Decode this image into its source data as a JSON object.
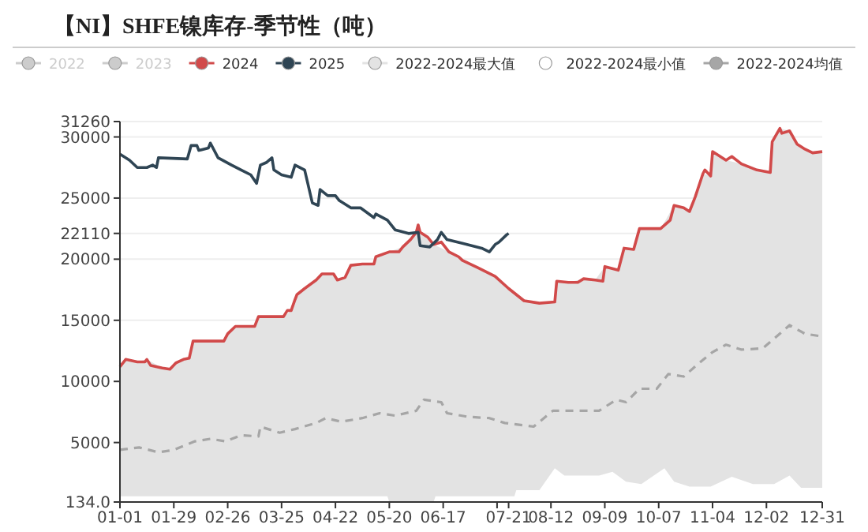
{
  "chart_data": {
    "type": "line",
    "title": "【NI】SHFE镍库存-季节性（吨）",
    "legend": "top",
    "grid": "y",
    "marker": "none",
    "xlim": [
      "--01-01",
      "--12-31"
    ],
    "ylim": [
      134,
      31260
    ],
    "xticks": [
      {
        "value": "--01-01",
        "label": "01-01"
      },
      {
        "value": "--01-29",
        "label": "01-29"
      },
      {
        "value": "--02-26",
        "label": "02-26"
      },
      {
        "value": "--03-25",
        "label": "03-25"
      },
      {
        "value": "--04-22",
        "label": "04-22"
      },
      {
        "value": "--05-20",
        "label": "05-20"
      },
      {
        "value": "--06-17",
        "label": "06-17"
      },
      {
        "value": "--07-15",
        "label": null
      },
      {
        "value": "--07-21",
        "label": "07-21"
      },
      {
        "value": "--08-12",
        "label": "08-12"
      },
      {
        "value": "--09-09",
        "label": "09-09"
      },
      {
        "value": "--10-07",
        "label": "10-07"
      },
      {
        "value": "--11-04",
        "label": "11-04"
      },
      {
        "value": "--12-02",
        "label": "12-02"
      },
      {
        "value": "--12-31",
        "label": "12-31"
      }
    ],
    "yticks": [
      {
        "value": 134,
        "label": "134.0"
      },
      5000,
      10000,
      15000,
      20000,
      {
        "value": 22110,
        "label": "22110"
      },
      25000,
      30000,
      31260
    ],
    "series": [
      {
        "name": "2022",
        "color": "#cccccc",
        "type": "line"
      },
      {
        "name": "2023",
        "color": "#cccccc",
        "type": "line"
      },
      {
        "name": "2024",
        "color": "#d14a4a",
        "type": "line",
        "x": [
          "--01-01",
          "--01-04",
          "--01-10",
          "--01-14",
          "--01-15",
          "--01-17",
          "--01-23",
          "--01-27",
          "--01-30",
          "--02-03",
          "--02-06",
          "--02-08",
          "--02-24",
          "--02-26",
          "--03-01",
          "--03-11",
          "--03-13",
          "--03-26",
          "--03-28",
          "--03-30",
          "--04-01",
          "--04-02",
          "--04-06",
          "--04-12",
          "--04-15",
          "--04-21",
          "--04-23",
          "--04-27",
          "--04-30",
          "--05-06",
          "--05-12",
          "--05-13",
          "--05-20",
          "--05-25",
          "--05-27",
          "--05-31",
          "--06-03",
          "--06-04",
          "--06-05",
          "--06-09",
          "--06-12",
          "--06-16",
          "--06-20",
          "--06-25",
          "--06-27",
          "--07-05",
          "--07-14",
          "--07-21",
          "--07-29",
          "--08-06",
          "--08-14",
          "--08-15",
          "--08-21",
          "--08-26",
          "--08-29",
          "--09-04",
          "--09-08",
          "--09-09",
          "--09-16",
          "--09-19",
          "--09-24",
          "--09-27",
          "--10-08",
          "--10-13",
          "--10-15",
          "--10-20",
          "--10-23",
          "--10-26",
          "--10-30",
          "--10-31",
          "--11-03",
          "--11-04",
          "--11-11",
          "--11-14",
          "--11-19",
          "--11-27",
          "--12-04",
          "--12-05",
          "--12-09",
          "--12-10",
          "--12-14",
          "--12-18",
          "--12-22",
          "--12-26",
          "--12-31"
        ],
        "values": [
          11200,
          11800,
          11600,
          11600,
          11800,
          11300,
          11100,
          11000,
          11500,
          11800,
          11900,
          13300,
          13300,
          13900,
          14500,
          14500,
          15300,
          15300,
          15800,
          15800,
          16700,
          17100,
          17600,
          18300,
          18800,
          18800,
          18300,
          18500,
          19500,
          19600,
          19600,
          20200,
          20600,
          20600,
          21000,
          21600,
          22200,
          22800,
          22200,
          21800,
          21200,
          21400,
          20600,
          20200,
          19900,
          19300,
          18600,
          17600,
          16600,
          16400,
          16500,
          18200,
          18100,
          18100,
          18400,
          18300,
          18200,
          19400,
          19100,
          20900,
          20800,
          22500,
          22500,
          23200,
          24400,
          24200,
          23900,
          25100,
          27000,
          27300,
          26800,
          28800,
          28100,
          28400,
          27800,
          27300,
          27100,
          29600,
          30700,
          30300,
          30500,
          29400,
          29000,
          28700,
          28800
        ]
      },
      {
        "name": "2025",
        "color": "#2f4554",
        "type": "line",
        "x": [
          "--01-01",
          "--01-06",
          "--01-10",
          "--01-15",
          "--01-18",
          "--01-20",
          "--01-21",
          "--02-05",
          "--02-07",
          "--02-10",
          "--02-11",
          "--02-16",
          "--02-17",
          "--02-21",
          "--02-28",
          "--03-04",
          "--03-09",
          "--03-12",
          "--03-14",
          "--03-17",
          "--03-20",
          "--03-21",
          "--03-25",
          "--03-30",
          "--04-01",
          "--04-06",
          "--04-10",
          "--04-13",
          "--04-14",
          "--04-18",
          "--04-22",
          "--04-24",
          "--04-30",
          "--05-05",
          "--05-12",
          "--05-13",
          "--05-19",
          "--05-23",
          "--05-30",
          "--06-04",
          "--06-05",
          "--06-10",
          "--06-14",
          "--06-16",
          "--06-19",
          "--06-27",
          "--07-07",
          "--07-11",
          "--07-14",
          "--07-16",
          "--07-20",
          "--07-21"
        ],
        "values": [
          28600,
          28100,
          27500,
          27500,
          27700,
          27500,
          28300,
          28200,
          29300,
          29300,
          28900,
          29100,
          29500,
          28300,
          27700,
          27300,
          26900,
          26200,
          27700,
          27900,
          28300,
          27300,
          26900,
          26700,
          27700,
          27300,
          24600,
          24400,
          25700,
          25200,
          25200,
          24800,
          24200,
          24200,
          23400,
          23700,
          23200,
          22400,
          22100,
          22200,
          21100,
          21000,
          21600,
          22200,
          21600,
          21300,
          20900,
          20600,
          21200,
          21400,
          22000,
          22110
        ]
      },
      {
        "name": "2022-2024最大值",
        "color": "#e3e3e3",
        "type": "area",
        "x": [
          "--01-01",
          "--01-04",
          "--01-10",
          "--01-15",
          "--01-23",
          "--01-27",
          "--01-30",
          "--02-06",
          "--02-08",
          "--02-24",
          "--02-26",
          "--03-01",
          "--03-11",
          "--03-13",
          "--03-26",
          "--03-30",
          "--04-01",
          "--04-06",
          "--04-12",
          "--04-15",
          "--04-21",
          "--04-23",
          "--04-27",
          "--04-30",
          "--05-06",
          "--05-12",
          "--05-13",
          "--05-20",
          "--05-27",
          "--05-31",
          "--06-03",
          "--06-04",
          "--06-05",
          "--06-09",
          "--06-12",
          "--06-20",
          "--06-25",
          "--06-27",
          "--07-05",
          "--07-14",
          "--07-21",
          "--07-29",
          "--08-06",
          "--08-14",
          "--08-15",
          "--08-21",
          "--08-29",
          "--09-04",
          "--09-09",
          "--09-16",
          "--09-19",
          "--09-24",
          "--09-27",
          "--10-08",
          "--10-15",
          "--10-20",
          "--10-23",
          "--10-26",
          "--10-30",
          "--11-03",
          "--11-04",
          "--11-11",
          "--11-19",
          "--11-27",
          "--12-04",
          "--12-05",
          "--12-09",
          "--12-14",
          "--12-18",
          "--12-26",
          "--12-31"
        ],
        "values": [
          11200,
          11800,
          11600,
          11800,
          11100,
          11000,
          11500,
          11900,
          13300,
          13300,
          13900,
          14500,
          14500,
          15300,
          15300,
          15800,
          16700,
          17600,
          18300,
          18800,
          18800,
          18300,
          18500,
          19500,
          19600,
          19600,
          20200,
          20600,
          21000,
          21600,
          22200,
          22800,
          22200,
          21800,
          21200,
          20600,
          20200,
          19900,
          19300,
          18600,
          17600,
          16600,
          16400,
          16500,
          18200,
          18100,
          18400,
          18300,
          19400,
          19100,
          20900,
          20800,
          22500,
          22500,
          24400,
          24200,
          23900,
          25100,
          27000,
          26800,
          28800,
          28100,
          27800,
          27300,
          27100,
          29600,
          30700,
          30500,
          29400,
          28700,
          28800
        ]
      },
      {
        "name": "2022-2024最小值",
        "color": "#ffffff",
        "type": "area",
        "x": [
          "--01-01",
          "--05-19",
          "--05-20",
          "--06-12",
          "--06-13",
          "--07-24",
          "--07-25",
          "--08-06",
          "--08-14",
          "--08-19",
          "--09-06",
          "--09-13",
          "--09-20",
          "--09-28",
          "--10-10",
          "--10-15",
          "--10-23",
          "--11-03",
          "--11-14",
          "--11-25",
          "--12-06",
          "--12-14",
          "--12-20",
          "--12-31"
        ],
        "values": [
          600,
          600,
          134,
          134,
          600,
          600,
          1100,
          1100,
          2900,
          2300,
          2300,
          2600,
          1800,
          1600,
          2900,
          1800,
          1400,
          1400,
          2200,
          1600,
          1600,
          2300,
          1300,
          1300
        ]
      },
      {
        "name": "2022-2024均值",
        "color": "#a6a6a6",
        "type": "line",
        "line_style": "dashed",
        "x": [
          "--01-01",
          "--01-11",
          "--01-21",
          "--01-29",
          "--02-09",
          "--02-17",
          "--02-25",
          "--03-04",
          "--03-13",
          "--03-14",
          "--03-24",
          "--04-01",
          "--04-12",
          "--04-17",
          "--04-25",
          "--05-06",
          "--05-15",
          "--05-23",
          "--06-03",
          "--06-07",
          "--06-16",
          "--06-19",
          "--06-30",
          "--07-11",
          "--07-19",
          "--08-03",
          "--08-13",
          "--08-21",
          "--09-06",
          "--09-15",
          "--09-20",
          "--09-27",
          "--10-06",
          "--10-12",
          "--10-20",
          "--10-28",
          "--11-04",
          "--11-11",
          "--11-19",
          "--11-30",
          "--12-06",
          "--12-14",
          "--12-22",
          "--12-30"
        ],
        "values": [
          4400,
          4600,
          4200,
          4400,
          5100,
          5300,
          5100,
          5600,
          5500,
          6300,
          5800,
          6100,
          6600,
          7000,
          6700,
          7000,
          7400,
          7200,
          7600,
          8500,
          8300,
          7400,
          7100,
          7000,
          6600,
          6300,
          7600,
          7600,
          7600,
          8500,
          8300,
          9400,
          9400,
          10600,
          10400,
          11500,
          12400,
          13000,
          12600,
          12700,
          13500,
          14600,
          13900,
          13700
        ]
      }
    ]
  }
}
